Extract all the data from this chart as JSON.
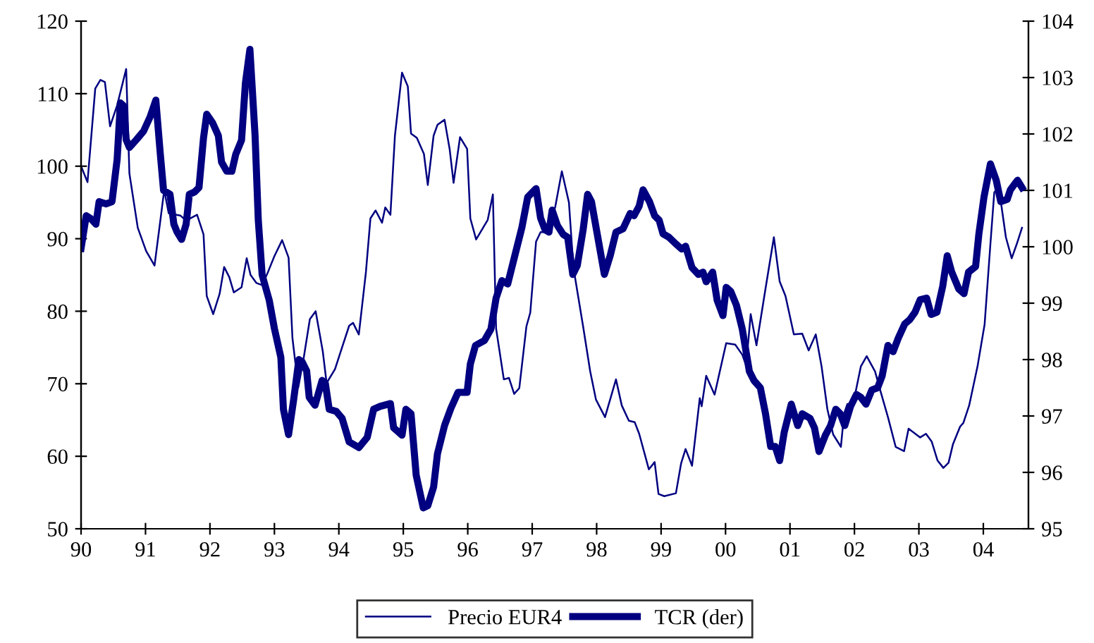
{
  "chart_data": {
    "type": "line",
    "xlim": [
      1990,
      2004.7
    ],
    "xticks": [
      {
        "value": 1990,
        "label": "90"
      },
      {
        "value": 1991,
        "label": "91"
      },
      {
        "value": 1992,
        "label": "92"
      },
      {
        "value": 1993,
        "label": "93"
      },
      {
        "value": 1994,
        "label": "94"
      },
      {
        "value": 1995,
        "label": "95"
      },
      {
        "value": 1996,
        "label": "96"
      },
      {
        "value": 1997,
        "label": "97"
      },
      {
        "value": 1998,
        "label": "98"
      },
      {
        "value": 1999,
        "label": "99"
      },
      {
        "value": 2000,
        "label": "00"
      },
      {
        "value": 2001,
        "label": "01"
      },
      {
        "value": 2002,
        "label": "02"
      },
      {
        "value": 2003,
        "label": "03"
      },
      {
        "value": 2004,
        "label": "04"
      }
    ],
    "ylim": [
      50,
      120
    ],
    "yticks": [
      50,
      60,
      70,
      80,
      90,
      100,
      110,
      120
    ],
    "y2lim": [
      95,
      104
    ],
    "y2ticks": [
      95,
      96,
      97,
      98,
      99,
      100,
      101,
      102,
      103,
      104
    ],
    "legend": "bottom",
    "grid": false,
    "marker": "none",
    "line_style": "solid",
    "series": [
      {
        "name": "Precio EUR4",
        "color": "#000080",
        "x": [
          1990.0,
          1990.1,
          1990.22,
          1990.3,
          1990.37,
          1990.45,
          1990.56,
          1990.7,
          1990.75,
          1990.88,
          1991.01,
          1991.14,
          1991.23,
          1991.29,
          1991.36,
          1991.54,
          1991.63,
          1991.8,
          1991.9,
          1991.95,
          1992.05,
          1992.15,
          1992.22,
          1992.3,
          1992.37,
          1992.49,
          1992.57,
          1992.63,
          1992.72,
          1992.81,
          1992.9,
          1993.0,
          1993.12,
          1993.22,
          1993.28,
          1993.37,
          1993.45,
          1993.55,
          1993.64,
          1993.75,
          1993.81,
          1993.94,
          1994.06,
          1994.16,
          1994.22,
          1994.31,
          1994.42,
          1994.49,
          1994.57,
          1994.67,
          1994.72,
          1994.8,
          1994.87,
          1994.98,
          1995.07,
          1995.12,
          1995.21,
          1995.32,
          1995.38,
          1995.47,
          1995.53,
          1995.64,
          1995.72,
          1995.78,
          1995.88,
          1995.99,
          1996.04,
          1996.13,
          1996.31,
          1996.39,
          1996.44,
          1996.56,
          1996.64,
          1996.72,
          1996.8,
          1996.91,
          1996.97,
          1997.06,
          1997.13,
          1997.26,
          1997.36,
          1997.46,
          1997.57,
          1997.64,
          1997.79,
          1997.9,
          1997.99,
          1998.13,
          1998.3,
          1998.39,
          1998.5,
          1998.59,
          1998.66,
          1998.81,
          1998.9,
          1998.96,
          1999.05,
          1999.23,
          1999.31,
          1999.38,
          1999.48,
          1999.6,
          1999.63,
          1999.7,
          1999.83,
          2000.01,
          2000.15,
          2000.26,
          2000.32,
          2000.39,
          2000.48,
          2000.62,
          2000.75,
          2000.84,
          2000.93,
          2001.06,
          2001.19,
          2001.29,
          2001.4,
          2001.49,
          2001.58,
          2001.67,
          2001.79,
          2001.84,
          2001.89,
          2001.98,
          2002.1,
          2002.19,
          2002.32,
          2002.41,
          2002.52,
          2002.64,
          2002.77,
          2002.84,
          2003.02,
          2003.11,
          2003.2,
          2003.29,
          2003.38,
          2003.46,
          2003.53,
          2003.64,
          2003.69,
          2003.78,
          2003.91,
          2004.02,
          2004.11,
          2004.17,
          2004.24,
          2004.35,
          2004.44,
          2004.52,
          2004.6
        ],
        "values": [
          100.0,
          97.8,
          110.7,
          111.9,
          111.6,
          105.5,
          108.4,
          113.4,
          99.0,
          91.5,
          88.3,
          86.3,
          92.5,
          96.7,
          93.5,
          93.2,
          92.5,
          93.3,
          90.6,
          82.1,
          79.6,
          82.4,
          86.1,
          84.7,
          82.6,
          83.3,
          87.3,
          85.0,
          83.9,
          83.6,
          85.4,
          87.6,
          89.8,
          87.4,
          76.3,
          69.5,
          73.3,
          78.9,
          80.0,
          74.5,
          70.1,
          72.0,
          75.3,
          78.0,
          78.4,
          76.8,
          85.4,
          92.8,
          93.9,
          92.2,
          94.3,
          93.3,
          104.2,
          112.9,
          111.0,
          104.5,
          103.9,
          101.7,
          97.4,
          104.2,
          105.7,
          106.4,
          102.3,
          97.7,
          104.0,
          102.4,
          92.8,
          89.9,
          92.6,
          96.1,
          77.6,
          70.6,
          70.8,
          68.6,
          69.4,
          77.9,
          79.8,
          89.6,
          90.9,
          90.9,
          94.5,
          99.3,
          95.0,
          86.0,
          77.9,
          71.7,
          67.8,
          65.4,
          70.6,
          67.0,
          64.9,
          64.7,
          63.1,
          58.2,
          59.2,
          54.8,
          54.5,
          54.9,
          59.0,
          61.0,
          58.7,
          68.0,
          66.9,
          71.1,
          68.5,
          75.6,
          75.4,
          74.0,
          72.5,
          79.6,
          75.3,
          83.1,
          90.2,
          84.1,
          82.1,
          76.8,
          76.9,
          74.6,
          76.8,
          72.4,
          66.5,
          63.0,
          61.3,
          65.9,
          67.2,
          67.2,
          72.4,
          73.8,
          71.7,
          68.8,
          65.4,
          61.3,
          60.7,
          63.8,
          62.6,
          63.1,
          62.0,
          59.4,
          58.4,
          59.1,
          61.7,
          64.1,
          64.6,
          67.0,
          72.4,
          78.2,
          89.3,
          96.4,
          97.1,
          90.2,
          87.3,
          89.3,
          91.5
        ]
      },
      {
        "name": "TCR (der)",
        "color": "#000080",
        "axis": "y2",
        "x": [
          1990.0,
          1990.08,
          1990.15,
          1990.23,
          1990.28,
          1990.39,
          1990.48,
          1990.56,
          1990.61,
          1990.66,
          1990.7,
          1990.75,
          1990.86,
          1990.97,
          1991.07,
          1991.16,
          1991.23,
          1991.28,
          1991.38,
          1991.44,
          1991.49,
          1991.56,
          1991.63,
          1991.68,
          1991.76,
          1991.83,
          1991.9,
          1991.95,
          1992.04,
          1992.13,
          1992.18,
          1992.26,
          1992.34,
          1992.4,
          1992.49,
          1992.55,
          1992.62,
          1992.7,
          1992.75,
          1992.81,
          1992.92,
          1993.0,
          1993.1,
          1993.14,
          1993.22,
          1993.3,
          1993.38,
          1993.43,
          1993.5,
          1993.54,
          1993.63,
          1993.74,
          1993.79,
          1993.85,
          1993.96,
          1994.05,
          1994.16,
          1994.31,
          1994.44,
          1994.54,
          1994.64,
          1994.8,
          1994.85,
          1994.98,
          1995.04,
          1995.12,
          1995.2,
          1995.31,
          1995.38,
          1995.47,
          1995.53,
          1995.64,
          1995.74,
          1995.85,
          1995.99,
          1996.04,
          1996.12,
          1996.26,
          1996.36,
          1996.44,
          1996.53,
          1996.62,
          1996.73,
          1996.84,
          1996.93,
          1997.06,
          1997.13,
          1997.2,
          1997.26,
          1997.31,
          1997.39,
          1997.48,
          1997.55,
          1997.63,
          1997.7,
          1997.79,
          1997.86,
          1997.92,
          1998.01,
          1998.12,
          1998.21,
          1998.3,
          1998.41,
          1998.52,
          1998.58,
          1998.66,
          1998.72,
          1998.82,
          1998.9,
          1998.97,
          1999.03,
          1999.12,
          1999.23,
          1999.32,
          1999.38,
          1999.48,
          1999.58,
          1999.65,
          1999.7,
          1999.8,
          1999.87,
          1999.96,
          2000.01,
          2000.08,
          2000.17,
          2000.26,
          2000.37,
          2000.44,
          2000.54,
          2000.62,
          2000.7,
          2000.77,
          2000.84,
          2000.91,
          2001.02,
          2001.12,
          2001.19,
          2001.31,
          2001.38,
          2001.45,
          2001.55,
          2001.63,
          2001.71,
          2001.78,
          2001.85,
          2001.94,
          2002.03,
          2002.1,
          2002.18,
          2002.27,
          2002.36,
          2002.43,
          2002.52,
          2002.6,
          2002.68,
          2002.78,
          2002.86,
          2002.94,
          2003.02,
          2003.12,
          2003.19,
          2003.28,
          2003.37,
          2003.44,
          2003.51,
          2003.62,
          2003.7,
          2003.77,
          2003.88,
          2003.93,
          2004.01,
          2004.11,
          2004.2,
          2004.27,
          2004.37,
          2004.42,
          2004.53,
          2004.6
        ],
        "values": [
          99.97,
          100.55,
          100.5,
          100.4,
          100.8,
          100.76,
          100.8,
          101.55,
          102.55,
          102.5,
          101.9,
          101.76,
          101.9,
          102.05,
          102.3,
          102.6,
          101.64,
          101.0,
          100.93,
          100.4,
          100.26,
          100.13,
          100.4,
          100.93,
          100.97,
          101.05,
          101.93,
          102.35,
          102.2,
          101.97,
          101.5,
          101.34,
          101.34,
          101.64,
          101.89,
          102.9,
          103.5,
          101.97,
          100.47,
          99.5,
          99.05,
          98.55,
          98.04,
          97.12,
          96.67,
          97.3,
          98.0,
          97.96,
          97.8,
          97.33,
          97.19,
          97.63,
          97.58,
          97.12,
          97.08,
          96.96,
          96.54,
          96.44,
          96.62,
          97.12,
          97.17,
          97.22,
          96.79,
          96.66,
          97.12,
          97.04,
          95.95,
          95.37,
          95.41,
          95.74,
          96.33,
          96.83,
          97.14,
          97.42,
          97.42,
          97.92,
          98.25,
          98.34,
          98.54,
          99.09,
          99.4,
          99.34,
          99.84,
          100.34,
          100.88,
          101.03,
          100.51,
          100.3,
          100.26,
          100.65,
          100.38,
          100.22,
          100.17,
          99.51,
          99.67,
          100.3,
          100.93,
          100.8,
          100.22,
          99.51,
          99.84,
          100.26,
          100.32,
          100.59,
          100.55,
          100.72,
          101.01,
          100.8,
          100.55,
          100.47,
          100.23,
          100.17,
          100.05,
          99.96,
          100.01,
          99.63,
          99.51,
          99.55,
          99.38,
          99.55,
          99.05,
          98.78,
          99.28,
          99.21,
          98.96,
          98.54,
          97.79,
          97.63,
          97.5,
          97.04,
          96.46,
          96.46,
          96.21,
          96.71,
          97.21,
          96.83,
          97.04,
          96.96,
          96.79,
          96.37,
          96.66,
          96.83,
          97.12,
          97.04,
          96.83,
          97.17,
          97.38,
          97.33,
          97.21,
          97.46,
          97.5,
          97.71,
          98.25,
          98.14,
          98.38,
          98.63,
          98.71,
          98.84,
          99.06,
          99.09,
          98.8,
          98.84,
          99.3,
          99.84,
          99.55,
          99.25,
          99.17,
          99.55,
          99.65,
          100.22,
          100.88,
          101.47,
          101.18,
          100.8,
          100.84,
          101.01,
          101.18,
          101.05
        ]
      }
    ]
  }
}
